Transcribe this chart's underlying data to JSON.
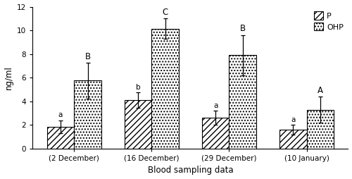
{
  "categories": [
    "(2 December)",
    "(16 December)",
    "(29 December)",
    "(10 January)"
  ],
  "P_values": [
    1.85,
    4.1,
    2.6,
    1.6
  ],
  "OHP_values": [
    5.75,
    10.15,
    7.9,
    3.3
  ],
  "P_errors": [
    0.55,
    0.65,
    0.6,
    0.4
  ],
  "OHP_errors": [
    1.5,
    0.85,
    1.7,
    1.1
  ],
  "P_labels": [
    "a",
    "b",
    "a",
    "a"
  ],
  "OHP_labels": [
    "B",
    "C",
    "B",
    "A"
  ],
  "xlabel": "Blood sampling data",
  "ylabel": "ng/ml",
  "ylim": [
    0,
    12
  ],
  "yticks": [
    0,
    2,
    4,
    6,
    8,
    10,
    12
  ],
  "legend_P": "P",
  "legend_OHP": "OHP",
  "bar_width": 0.35,
  "P_hatch": "////",
  "OHP_hatch": "....",
  "bg_color": "#ffffff",
  "bar_edge_color": "#000000",
  "bar_face_color": "#ffffff"
}
